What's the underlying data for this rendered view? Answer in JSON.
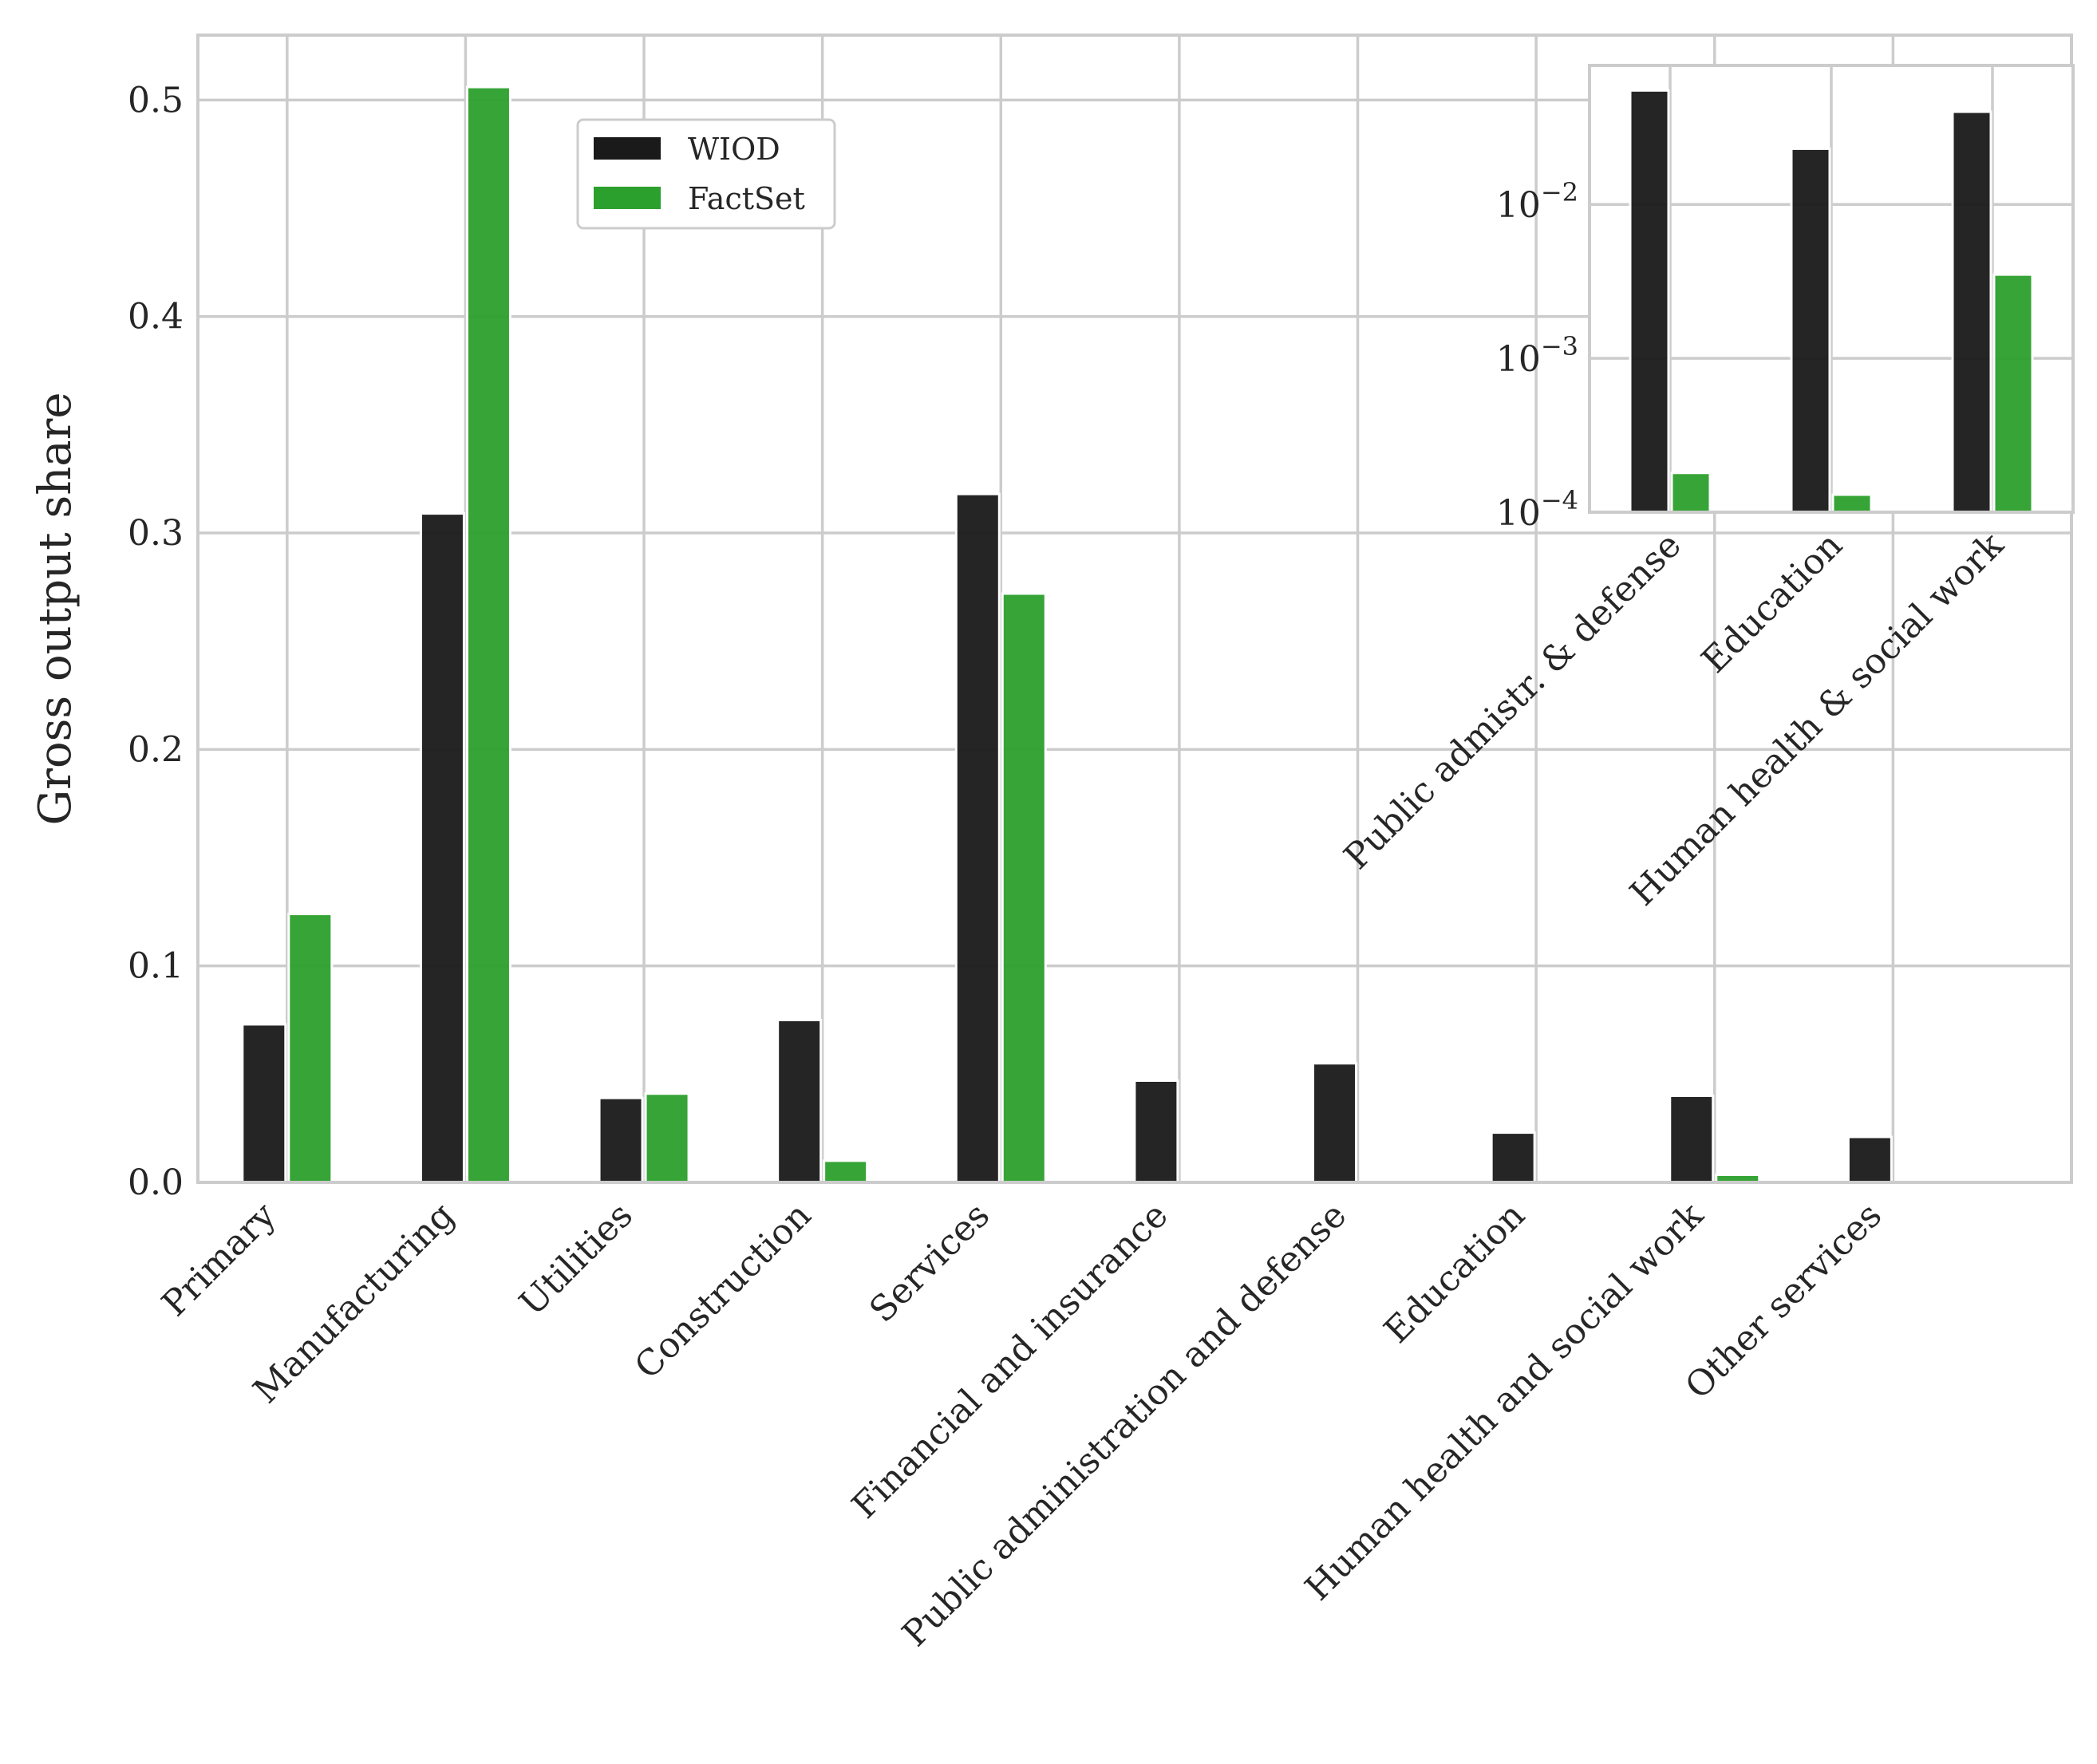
{
  "chart_data": [
    {
      "type": "bar",
      "categories": [
        "Primary",
        "Manufacturing",
        "Utilities",
        "Construction",
        "Services",
        "Financial and insurance",
        "Public administration and defense",
        "Education",
        "Human health and social work",
        "Other services"
      ],
      "series": [
        {
          "name": "WIOD",
          "color": "#1a1a1a",
          "values": [
            0.073,
            0.309,
            0.039,
            0.075,
            0.318,
            0.047,
            0.055,
            0.023,
            0.04,
            0.021
          ]
        },
        {
          "name": "FactSet",
          "color": "#2ca02c",
          "values": [
            0.124,
            0.506,
            0.041,
            0.01,
            0.272,
            0.0002,
            0.0002,
            0.0001,
            0.0035,
            0.0
          ]
        }
      ],
      "ylabel": "Gross output share",
      "ylim": [
        0,
        0.53
      ],
      "yticks": [
        0.0,
        0.1,
        0.2,
        0.3,
        0.4,
        0.5
      ],
      "ytick_labels": [
        "0.0",
        "0.1",
        "0.2",
        "0.3",
        "0.4",
        "0.5"
      ],
      "grid": true,
      "legend": {
        "placement": "upper-center-left",
        "entries": [
          "WIOD",
          "FactSet"
        ]
      }
    },
    {
      "type": "bar",
      "role": "inset",
      "yscale": "log",
      "categories": [
        "Public admistr. & defense",
        "Education",
        "Human health & social work"
      ],
      "series": [
        {
          "name": "WIOD",
          "color": "#1a1a1a",
          "values": [
            0.055,
            0.023,
            0.04
          ]
        },
        {
          "name": "FactSet",
          "color": "#2ca02c",
          "values": [
            0.00018,
            0.00013,
            0.0035
          ]
        }
      ],
      "ylim": [
        0.0001,
        0.08
      ],
      "yticks": [
        0.01,
        0.001,
        0.0001
      ],
      "ytick_labels": [
        {
          "base": "10",
          "exp": "−2"
        },
        {
          "base": "10",
          "exp": "−3"
        },
        {
          "base": "10",
          "exp": "−4"
        }
      ],
      "grid": true
    }
  ]
}
